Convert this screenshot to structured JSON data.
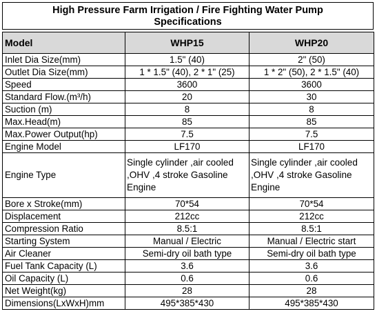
{
  "title": {
    "line1": "High Pressure Farm Irrigation / Fire Fighting Water Pump",
    "line2": "Specifications"
  },
  "header": {
    "model": "Model",
    "col1": "WHP15",
    "col2": "WHP20"
  },
  "rows": [
    {
      "label": "Inlet Dia Size(mm)",
      "v1": "1.5\" (40)",
      "v2": "2\"  (50)"
    },
    {
      "label": "Outlet Dia Size(mm)",
      "v1": "1  * 1.5\" (40), 2 * 1\" (25)",
      "v2": "1 * 2\" (50), 2 * 1.5\" (40)"
    },
    {
      "label": "Speed",
      "v1": "3600",
      "v2": "3600"
    },
    {
      "label": "Standard Flow.(m³/h)",
      "v1": "20",
      "v2": "30"
    },
    {
      "label": "Suction (m)",
      "v1": "8",
      "v2": "8"
    },
    {
      "label": "Max.Head(m)",
      "v1": "85",
      "v2": "85"
    },
    {
      "label": "Max.Power Output(hp)",
      "v1": "7.5",
      "v2": "7.5"
    },
    {
      "label": "Engine Model",
      "v1": "LF170",
      "v2": "LF170"
    },
    {
      "label": "Engine Type",
      "v1": "Single cylinder ,air cooled ,OHV ,4 stroke Gasoline Engine",
      "v2": "Single cylinder ,air cooled ,OHV ,4 stroke Gasoline Engine"
    },
    {
      "label": "Bore x Stroke(mm)",
      "v1": "70*54",
      "v2": "70*54"
    },
    {
      "label": "Displacement",
      "v1": "212cc",
      "v2": "212cc"
    },
    {
      "label": "Compression Ratio",
      "v1": "8.5:1",
      "v2": "8.5:1"
    },
    {
      "label": "Starting System",
      "v1": "Manual / Electric",
      "v2": "Manual / Electric start"
    },
    {
      "label": "Air Cleaner",
      "v1": "Semi-dry oil bath type",
      "v2": "Semi-dry oil bath type"
    },
    {
      "label": "Fuel Tank Capacity (L)",
      "v1": "3.6",
      "v2": "3.6"
    },
    {
      "label": "Oil Capacity (L)",
      "v1": "0.6",
      "v2": "0.6"
    },
    {
      "label": "Net Weight(kg)",
      "v1": "28",
      "v2": "28"
    },
    {
      "label": "Dimensions(LxWxH)mm",
      "v1": "495*385*430",
      "v2": "495*385*430"
    }
  ]
}
